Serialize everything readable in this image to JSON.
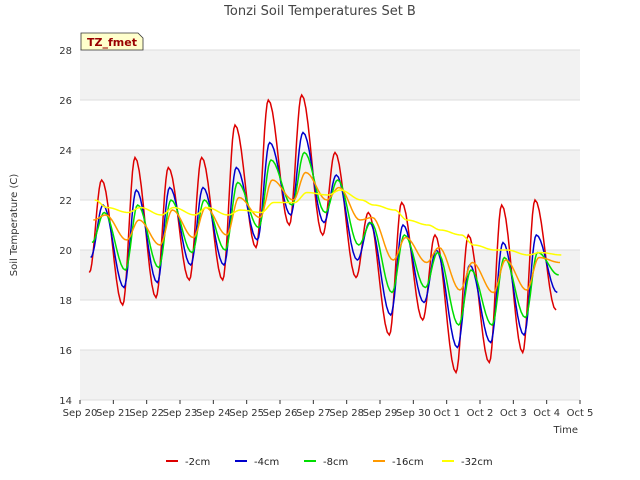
{
  "chart_data": {
    "type": "line",
    "title": "Tonzi Soil Temperatures Set B",
    "xlabel": "Time",
    "ylabel": "Soil Temperature (C)",
    "badge": "TZ_fmet",
    "ylim": [
      14,
      28
    ],
    "yticks": [
      "14",
      "16",
      "18",
      "20",
      "22",
      "24",
      "26",
      "28"
    ],
    "xlim": [
      0,
      15
    ],
    "xticks": [
      "Sep 20",
      "Sep 21",
      "Sep 22",
      "Sep 23",
      "Sep 24",
      "Sep 25",
      "Sep 26",
      "Sep 27",
      "Sep 28",
      "Sep 29",
      "Sep 30",
      "Oct 1",
      "Oct 2",
      "Oct 3",
      "Oct 4",
      "Oct 5"
    ],
    "grid": true,
    "legend_position": "bottom",
    "series": [
      {
        "name": "-2cm",
        "color": "#dd0000",
        "mins": [
          19.1,
          17.8,
          18.1,
          18.8,
          18.8,
          20.1,
          21.0,
          20.6,
          18.9,
          16.6,
          17.2,
          15.1,
          15.5,
          15.9,
          17.6
        ],
        "maxs": [
          22.8,
          23.7,
          23.3,
          23.7,
          25.0,
          26.0,
          26.2,
          23.9,
          21.5,
          21.9,
          20.6,
          20.6,
          21.8,
          22.0
        ]
      },
      {
        "name": "-4cm",
        "color": "#0000cc",
        "mins": [
          19.7,
          18.5,
          18.7,
          19.4,
          19.4,
          20.4,
          21.4,
          21.1,
          19.6,
          17.4,
          17.9,
          16.1,
          16.3,
          16.6,
          18.3
        ],
        "maxs": [
          21.8,
          22.4,
          22.5,
          22.5,
          23.3,
          24.3,
          24.7,
          23.0,
          21.1,
          21.0,
          20.0,
          19.4,
          20.3,
          20.6
        ]
      },
      {
        "name": "-8cm",
        "color": "#00dd00",
        "mins": [
          20.3,
          19.2,
          19.3,
          19.9,
          20.0,
          20.9,
          21.8,
          21.5,
          20.2,
          18.3,
          18.5,
          17.0,
          17.0,
          17.3,
          19.0
        ],
        "maxs": [
          21.5,
          21.8,
          22.0,
          22.0,
          22.7,
          23.6,
          23.9,
          22.8,
          21.1,
          20.6,
          19.9,
          19.2,
          19.7,
          19.9
        ]
      },
      {
        "name": "-16cm",
        "color": "#ff9900",
        "mins": [
          21.2,
          20.4,
          20.2,
          20.5,
          20.6,
          21.3,
          22.0,
          22.0,
          21.2,
          19.6,
          19.5,
          18.4,
          18.3,
          18.4,
          19.5
        ],
        "maxs": [
          21.4,
          21.2,
          21.6,
          21.7,
          22.1,
          22.8,
          23.1,
          22.5,
          21.3,
          20.5,
          20.1,
          19.5,
          19.6,
          19.7
        ]
      },
      {
        "name": "-32cm",
        "color": "#ffff00",
        "mins": [
          22.0,
          21.5,
          21.4,
          21.4,
          21.4,
          21.5,
          21.9,
          22.2,
          22.0,
          21.6,
          21.0,
          20.6,
          20.0,
          19.8,
          19.8
        ],
        "maxs": [
          21.7,
          21.7,
          21.7,
          21.7,
          21.6,
          21.9,
          22.3,
          22.4,
          21.8,
          21.2,
          20.8,
          20.2,
          20.0,
          19.9
        ]
      }
    ]
  }
}
